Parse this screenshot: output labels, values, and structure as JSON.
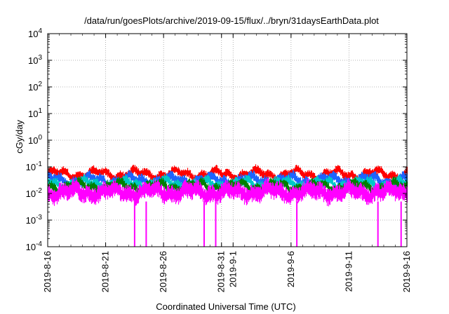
{
  "chart_data": {
    "type": "line",
    "title": "/data/run/goesPlots/archive/2019-09-15/flux/../bryn/31daysEarthData.plot",
    "xlabel": "Coordinated Universal Time (UTC)",
    "ylabel": "cGy/day",
    "yscale": "log",
    "ylim": [
      0.0001,
      10000
    ],
    "xlim": [
      "2019-08-16",
      "2019-09-16"
    ],
    "grid": true,
    "x_ticks": [
      "2019-8-16",
      "2019-8-21",
      "2019-8-26",
      "2019-8-31",
      "2019-9-1",
      "2019-9-6",
      "2019-9-11",
      "2019-9-16"
    ],
    "y_ticks": [
      {
        "value": 0.0001,
        "base": "10",
        "exp": "-4"
      },
      {
        "value": 0.001,
        "base": "10",
        "exp": "-3"
      },
      {
        "value": 0.01,
        "base": "10",
        "exp": "-2"
      },
      {
        "value": 0.1,
        "base": "10",
        "exp": "-1"
      },
      {
        "value": 1,
        "base": "10",
        "exp": "0"
      },
      {
        "value": 10,
        "base": "10",
        "exp": "1"
      },
      {
        "value": 100,
        "base": "10",
        "exp": "2"
      },
      {
        "value": 1000,
        "base": "10",
        "exp": "3"
      },
      {
        "value": 10000,
        "base": "10",
        "exp": "4"
      }
    ],
    "series": [
      {
        "color": "#ff0000",
        "typical_min": 0.035,
        "typical_max": 0.08
      },
      {
        "color": "#1e64ff",
        "typical_min": 0.02,
        "typical_max": 0.05
      },
      {
        "color": "#00c8c8",
        "typical_min": 0.015,
        "typical_max": 0.035
      },
      {
        "color": "#008000",
        "typical_min": 0.012,
        "typical_max": 0.028
      },
      {
        "color": "#ff00ff",
        "typical_min": 0.005,
        "typical_max": 0.025,
        "dropouts": [
          "2019-08-23",
          "2019-08-24",
          "2019-08-29",
          "2019-08-30",
          "2019-09-06",
          "2019-09-13",
          "2019-09-15"
        ]
      }
    ]
  }
}
